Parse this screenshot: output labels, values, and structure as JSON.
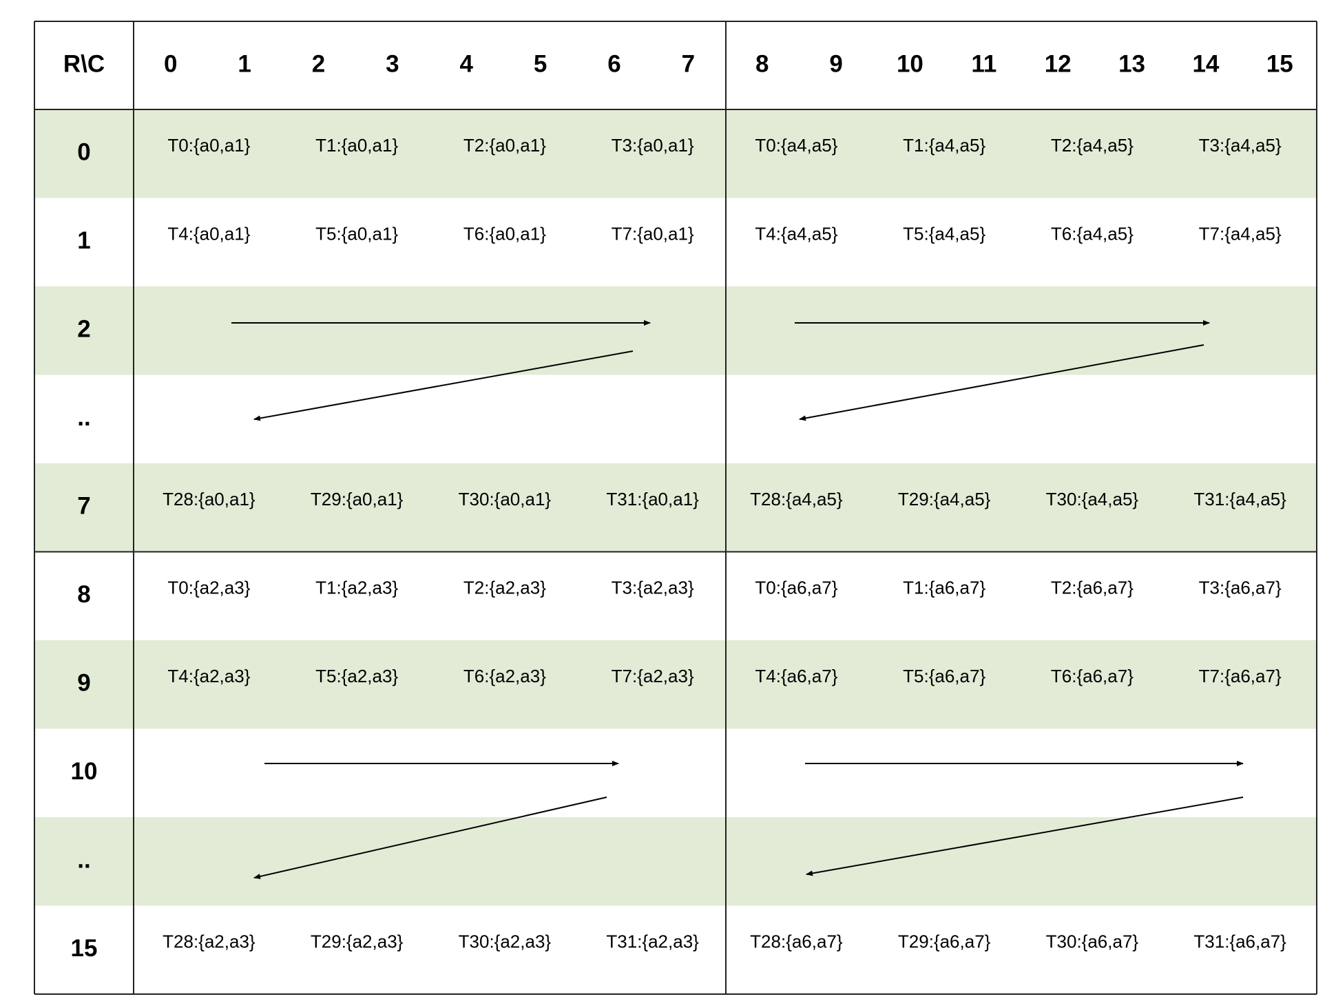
{
  "header": {
    "corner": "R\\C",
    "columns": [
      "0",
      "1",
      "2",
      "3",
      "4",
      "5",
      "6",
      "7",
      "8",
      "9",
      "10",
      "11",
      "12",
      "13",
      "14",
      "15"
    ]
  },
  "rows": [
    {
      "label": "0",
      "cells": [
        "T0:{a0,a1}",
        "T1:{a0,a1}",
        "T2:{a0,a1}",
        "T3:{a0,a1}",
        "T0:{a4,a5}",
        "T1:{a4,a5}",
        "T2:{a4,a5}",
        "T3:{a4,a5}"
      ]
    },
    {
      "label": "1",
      "cells": [
        "T4:{a0,a1}",
        "T5:{a0,a1}",
        "T6:{a0,a1}",
        "T7:{a0,a1}",
        "T4:{a4,a5}",
        "T5:{a4,a5}",
        "T6:{a4,a5}",
        "T7:{a4,a5}"
      ]
    },
    {
      "label": "2"
    },
    {
      "label": ".."
    },
    {
      "label": "7",
      "cells": [
        "T28:{a0,a1}",
        "T29:{a0,a1}",
        "T30:{a0,a1}",
        "T31:{a0,a1}",
        "T28:{a4,a5}",
        "T29:{a4,a5}",
        "T30:{a4,a5}",
        "T31:{a4,a5}"
      ]
    },
    {
      "label": "8",
      "cells": [
        "T0:{a2,a3}",
        "T1:{a2,a3}",
        "T2:{a2,a3}",
        "T3:{a2,a3}",
        "T0:{a6,a7}",
        "T1:{a6,a7}",
        "T2:{a6,a7}",
        "T3:{a6,a7}"
      ]
    },
    {
      "label": "9",
      "cells": [
        "T4:{a2,a3}",
        "T5:{a2,a3}",
        "T6:{a2,a3}",
        "T7:{a2,a3}",
        "T4:{a6,a7}",
        "T5:{a6,a7}",
        "T6:{a6,a7}",
        "T7:{a6,a7}"
      ]
    },
    {
      "label": "10"
    },
    {
      "label": ".."
    },
    {
      "label": "15",
      "cells": [
        "T28:{a2,a3}",
        "T29:{a2,a3}",
        "T30:{a2,a3}",
        "T31:{a2,a3}",
        "T28:{a6,a7}",
        "T29:{a6,a7}",
        "T30:{a6,a7}",
        "T31:{a6,a7}"
      ]
    }
  ]
}
